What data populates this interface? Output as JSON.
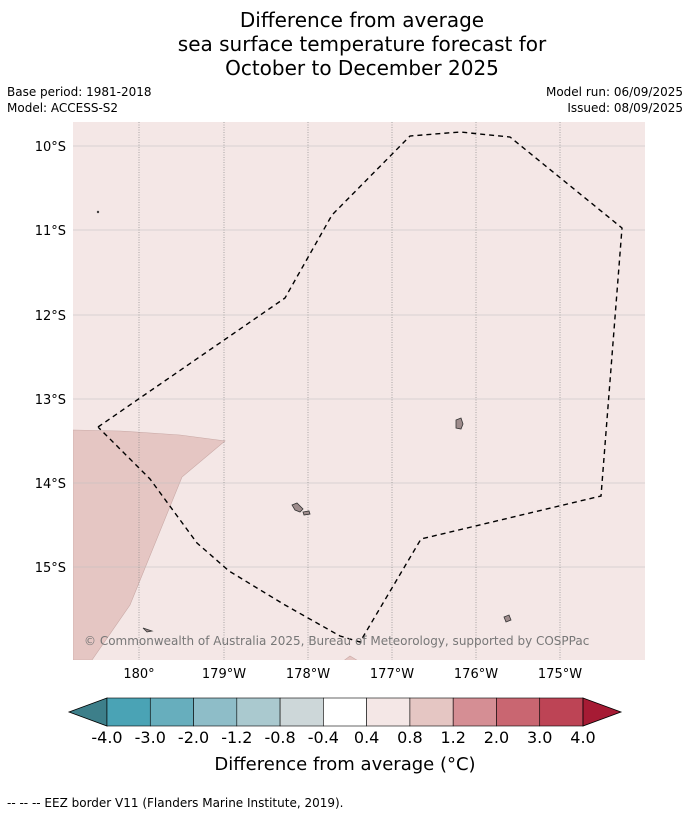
{
  "header": {
    "title_lines": [
      "Difference from average",
      "sea surface temperature forecast for",
      "October to December 2025"
    ],
    "base_period": "Base period: 1981-2018",
    "model": "Model: ACCESS-S2",
    "model_run": "Model run: 06/09/2025",
    "issued": "Issued: 08/09/2025"
  },
  "map": {
    "lat_labels": [
      "10°S",
      "11°S",
      "12°S",
      "13°S",
      "14°S",
      "15°S"
    ],
    "lon_labels": [
      "180°",
      "179°W",
      "178°W",
      "177°W",
      "176°W",
      "175°W"
    ],
    "copyright": "© Commonwealth of Australia 2025, Bureau of Meteorology, supported by COSPPac",
    "background_fill": "#f4e7e6",
    "anomaly_fill": "#e5c6c3",
    "land_fill": "#9e8c8c"
  },
  "colorbar": {
    "ticks": [
      "-4.0",
      "-3.0",
      "-2.0",
      "-1.2",
      "-0.8",
      "-0.4",
      "0.4",
      "0.8",
      "1.2",
      "2.0",
      "3.0",
      "4.0"
    ],
    "colors": [
      "#3d7f8a",
      "#4aa3b5",
      "#67aebd",
      "#8ebdc8",
      "#aac9cf",
      "#cdd7d9",
      "#ffffff",
      "#f4e7e6",
      "#e5c6c3",
      "#d58e94",
      "#c96671",
      "#bd4455",
      "#a61b34"
    ],
    "label": "Difference from average (°C)"
  },
  "footer": {
    "legend": "--  --  -- EEZ border V11 (Flanders Marine Institute, 2019)."
  }
}
